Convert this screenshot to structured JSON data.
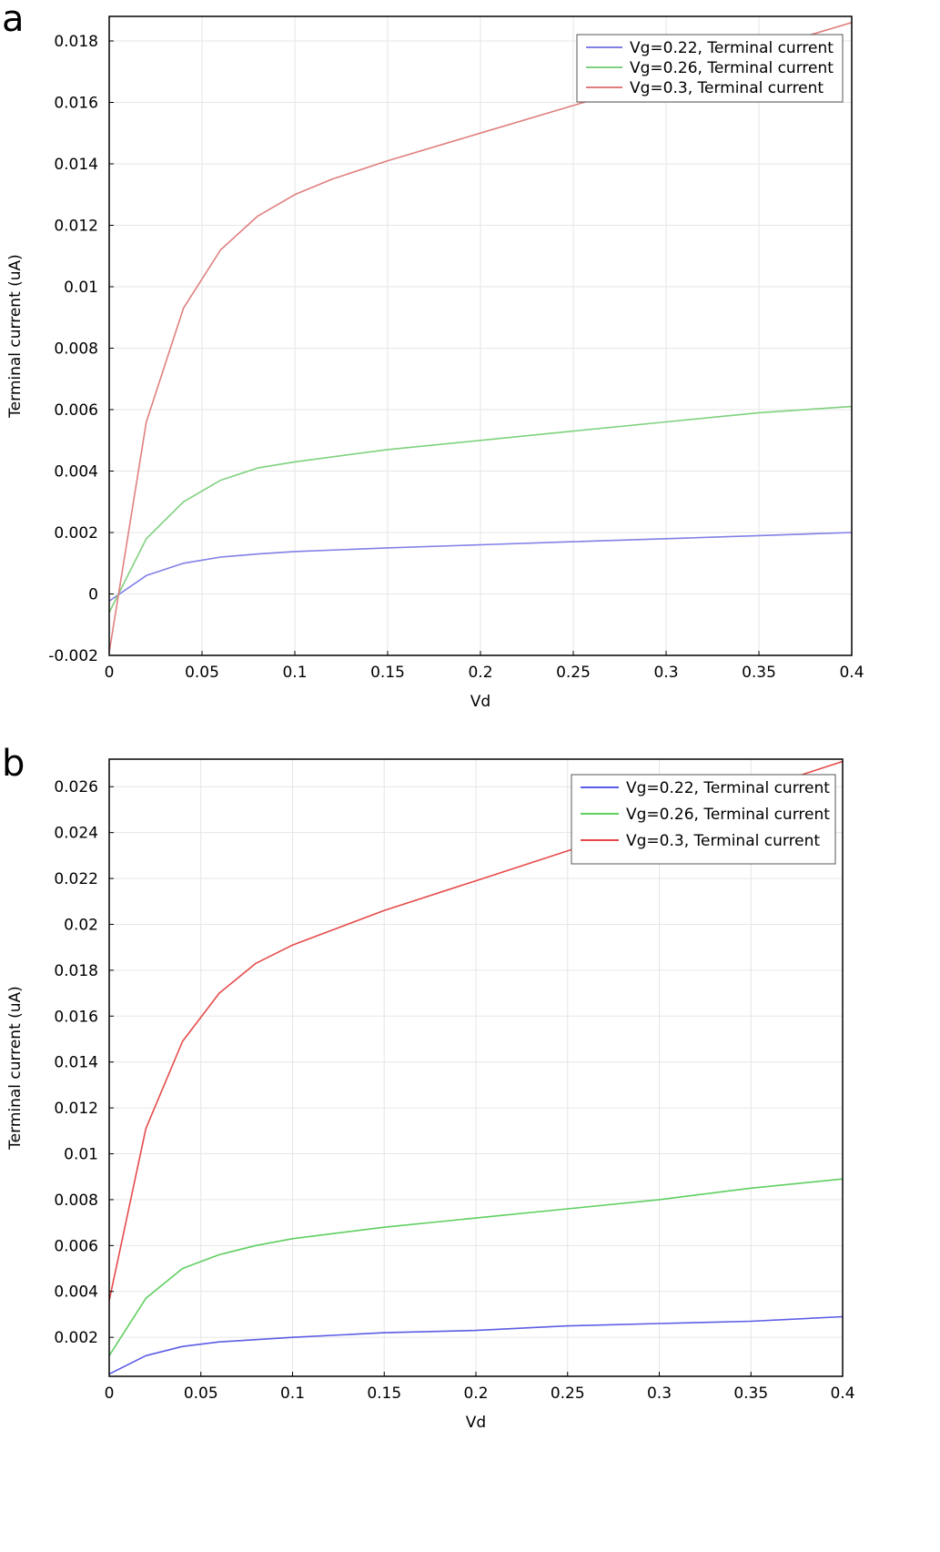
{
  "chart_data": [
    {
      "panel": "a",
      "type": "line",
      "xlabel": "Vd",
      "ylabel": "Terminal current (uA)",
      "xlim": [
        0,
        0.4
      ],
      "ylim": [
        -0.002,
        0.0188
      ],
      "grid": true,
      "legend_placement": "top-right",
      "xticks": [
        0,
        0.05,
        0.1,
        0.15,
        0.2,
        0.25,
        0.3,
        0.35,
        0.4
      ],
      "xtick_labels": [
        "0",
        "0.05",
        "0.1",
        "0.15",
        "0.2",
        "0.25",
        "0.3",
        "0.35",
        "0.4"
      ],
      "yticks": [
        -0.002,
        0,
        0.002,
        0.004,
        0.006,
        0.008,
        0.01,
        0.012,
        0.014,
        0.016,
        0.018
      ],
      "ytick_labels": [
        "-0.002",
        "0",
        "0.002",
        "0.004",
        "0.006",
        "0.008",
        "0.01",
        "0.012",
        "0.014",
        "0.016",
        "0.018"
      ],
      "series": [
        {
          "name": "Vg=0.22, Terminal current",
          "color": "#8080e6",
          "x": [
            0,
            0.02,
            0.04,
            0.06,
            0.08,
            0.1,
            0.15,
            0.2,
            0.25,
            0.3,
            0.35,
            0.4
          ],
          "y": [
            -0.00023,
            0.0006,
            0.001,
            0.0012,
            0.0013,
            0.00138,
            0.0015,
            0.0016,
            0.0017,
            0.0018,
            0.0019,
            0.002
          ]
        },
        {
          "name": "Vg=0.26, Terminal current",
          "color": "#7fd17f",
          "x": [
            0,
            0.02,
            0.04,
            0.06,
            0.08,
            0.1,
            0.15,
            0.2,
            0.25,
            0.3,
            0.35,
            0.4
          ],
          "y": [
            -0.0006,
            0.0018,
            0.003,
            0.0037,
            0.0041,
            0.0043,
            0.0047,
            0.005,
            0.0053,
            0.0056,
            0.0059,
            0.0061
          ]
        },
        {
          "name": "Vg=0.3, Terminal current",
          "color": "#e07f7f",
          "x": [
            0,
            0.02,
            0.04,
            0.06,
            0.08,
            0.1,
            0.12,
            0.15,
            0.2,
            0.25,
            0.3,
            0.35,
            0.4
          ],
          "y": [
            -0.0019,
            0.0056,
            0.0093,
            0.0112,
            0.0123,
            0.013,
            0.0135,
            0.0141,
            0.015,
            0.0159,
            0.0168,
            0.0177,
            0.0186
          ]
        }
      ]
    },
    {
      "panel": "b",
      "type": "line",
      "xlabel": "Vd",
      "ylabel": "Terminal current (uA)",
      "xlim": [
        0,
        0.4
      ],
      "ylim": [
        0.0003,
        0.0272
      ],
      "grid": true,
      "legend_placement": "top-right",
      "xticks": [
        0,
        0.05,
        0.1,
        0.15,
        0.2,
        0.25,
        0.3,
        0.35,
        0.4
      ],
      "xtick_labels": [
        "0",
        "0.05",
        "0.1",
        "0.15",
        "0.2",
        "0.25",
        "0.3",
        "0.35",
        "0.4"
      ],
      "yticks": [
        0.002,
        0.004,
        0.006,
        0.008,
        0.01,
        0.012,
        0.014,
        0.016,
        0.018,
        0.02,
        0.022,
        0.024,
        0.026
      ],
      "ytick_labels": [
        "0.002",
        "0.004",
        "0.006",
        "0.008",
        "0.01",
        "0.012",
        "0.014",
        "0.016",
        "0.018",
        "0.02",
        "0.022",
        "0.024",
        "0.026"
      ],
      "series": [
        {
          "name": "Vg=0.22, Terminal current",
          "color": "#5c5ce6",
          "x": [
            0,
            0.02,
            0.04,
            0.06,
            0.08,
            0.1,
            0.15,
            0.2,
            0.25,
            0.3,
            0.35,
            0.4
          ],
          "y": [
            0.0004,
            0.0012,
            0.0016,
            0.0018,
            0.0019,
            0.002,
            0.0022,
            0.0023,
            0.0025,
            0.0026,
            0.0027,
            0.0029
          ]
        },
        {
          "name": "Vg=0.26, Terminal current",
          "color": "#5fcf5f",
          "x": [
            0,
            0.02,
            0.04,
            0.06,
            0.08,
            0.1,
            0.15,
            0.2,
            0.25,
            0.3,
            0.35,
            0.4
          ],
          "y": [
            0.0012,
            0.0037,
            0.005,
            0.0056,
            0.006,
            0.0063,
            0.0068,
            0.0072,
            0.0076,
            0.008,
            0.0085,
            0.0089
          ]
        },
        {
          "name": "Vg=0.3, Terminal current",
          "color": "#e64a4a",
          "x": [
            0,
            0.02,
            0.04,
            0.06,
            0.08,
            0.1,
            0.12,
            0.15,
            0.2,
            0.25,
            0.3,
            0.35,
            0.4
          ],
          "y": [
            0.0036,
            0.0111,
            0.0149,
            0.017,
            0.0183,
            0.0191,
            0.0197,
            0.0206,
            0.0219,
            0.0232,
            0.0245,
            0.0258,
            0.0271
          ]
        }
      ]
    }
  ]
}
